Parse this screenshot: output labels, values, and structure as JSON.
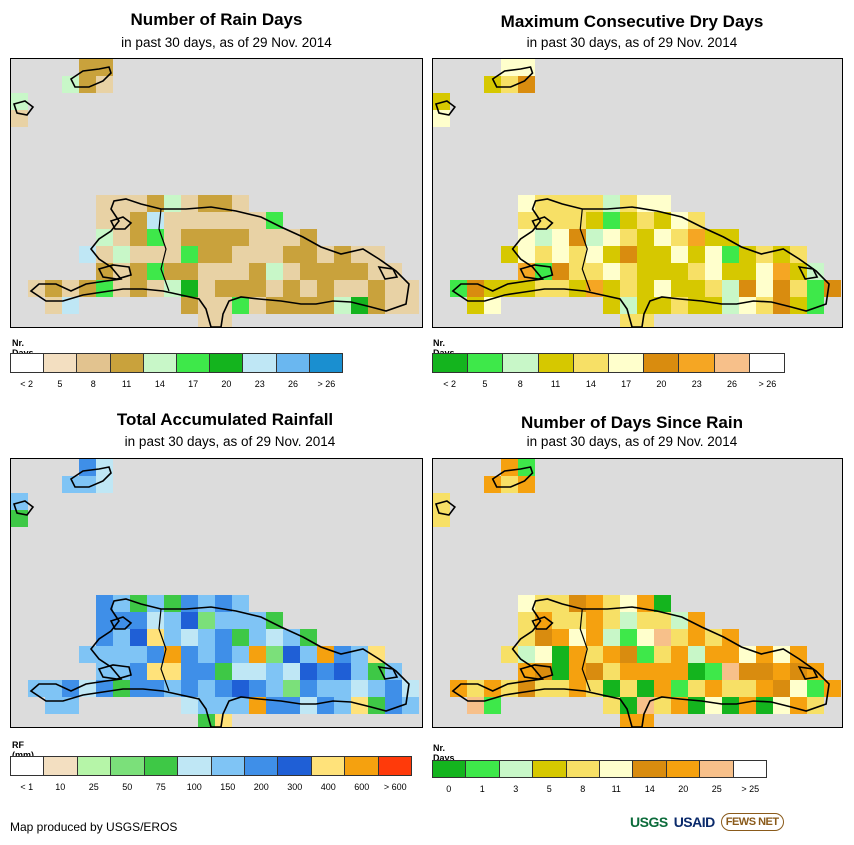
{
  "panels": [
    {
      "title": "Number of Rain Days",
      "subtitle": "in past 30 days, as of 29 Nov. 2014",
      "legend_title": "Nr. Days",
      "legend_colors": [
        "#ffffff",
        "#f3dfc1",
        "#e2c38f",
        "#c9a23c",
        "#c8f7c8",
        "#3ee84a",
        "#14b41e",
        "#bfe7f5",
        "#6ab7f0",
        "#1a8fd0"
      ],
      "legend_labels": [
        "< 2",
        "5",
        "8",
        "11",
        "14",
        "17",
        "20",
        "23",
        "26",
        "> 26"
      ],
      "grid_palette": [
        "#e8d2a5",
        "#c9a23c",
        "#c8f7c8",
        "#3ee84a",
        "#14b41e",
        "#bfe7f5"
      ],
      "grid_weights": [
        6,
        4,
        1,
        0.4,
        0.3,
        0.4
      ]
    },
    {
      "title": "Maximum Consecutive Dry Days",
      "subtitle": "in past 30 days, as of 29 Nov. 2014",
      "legend_title": "Nr. Days",
      "legend_colors": [
        "#14b41e",
        "#3ee84a",
        "#c8f7c8",
        "#d6c800",
        "#f7e066",
        "#ffffcc",
        "#d98c0f",
        "#f5a623",
        "#f7c08a",
        "#ffffff"
      ],
      "legend_labels": [
        "< 2",
        "5",
        "8",
        "11",
        "14",
        "17",
        "20",
        "23",
        "26",
        "> 26"
      ],
      "grid_palette": [
        "#d6c800",
        "#f7e066",
        "#ffffcc",
        "#c8f7c8",
        "#3ee84a",
        "#d98c0f",
        "#f5a623"
      ],
      "grid_weights": [
        4,
        4,
        2,
        1.5,
        1,
        1,
        0.6
      ]
    },
    {
      "title": "Total Accumulated Rainfall",
      "subtitle": "in past 30 days, as of 29 Nov. 2014",
      "legend_title": "RF (mm)",
      "legend_colors": [
        "#ffffff",
        "#f3dfc1",
        "#b6f5a8",
        "#7be07a",
        "#3ec846",
        "#bfe7f5",
        "#7fc4f5",
        "#3f8fe8",
        "#1f5fd6",
        "#ffe27a",
        "#f5a10f",
        "#ff3a0a"
      ],
      "legend_labels": [
        "< 1",
        "10",
        "25",
        "50",
        "75",
        "100",
        "150",
        "200",
        "300",
        "400",
        "600",
        "> 600"
      ],
      "grid_palette": [
        "#7fc4f5",
        "#3f8fe8",
        "#1f5fd6",
        "#bfe7f5",
        "#3ec846",
        "#7be07a",
        "#ffe27a",
        "#f5a10f"
      ],
      "grid_weights": [
        4,
        3,
        2,
        2,
        1.5,
        0.5,
        0.5,
        0.3
      ]
    },
    {
      "title": "Number of Days Since Rain",
      "subtitle": "in past 30 days, as of 29 Nov. 2014",
      "legend_title": "Nr. Days",
      "legend_colors": [
        "#14b41e",
        "#3ee84a",
        "#c8f7c8",
        "#d6c800",
        "#f7e066",
        "#ffffcc",
        "#d98c0f",
        "#f5a10f",
        "#f7c08a",
        "#ffffff"
      ],
      "legend_labels": [
        "0",
        "1",
        "3",
        "5",
        "8",
        "11",
        "14",
        "20",
        "25",
        "> 25"
      ],
      "grid_palette": [
        "#f7e066",
        "#f5a10f",
        "#d98c0f",
        "#14b41e",
        "#3ee84a",
        "#c8f7c8",
        "#ffffcc",
        "#f7c08a"
      ],
      "grid_weights": [
        4,
        3,
        1.5,
        1,
        1,
        1,
        0.8,
        0.3
      ]
    }
  ],
  "credit": "Map produced by USGS/EROS",
  "logos": [
    "USGS",
    "USAID",
    "FEWS NET"
  ]
}
